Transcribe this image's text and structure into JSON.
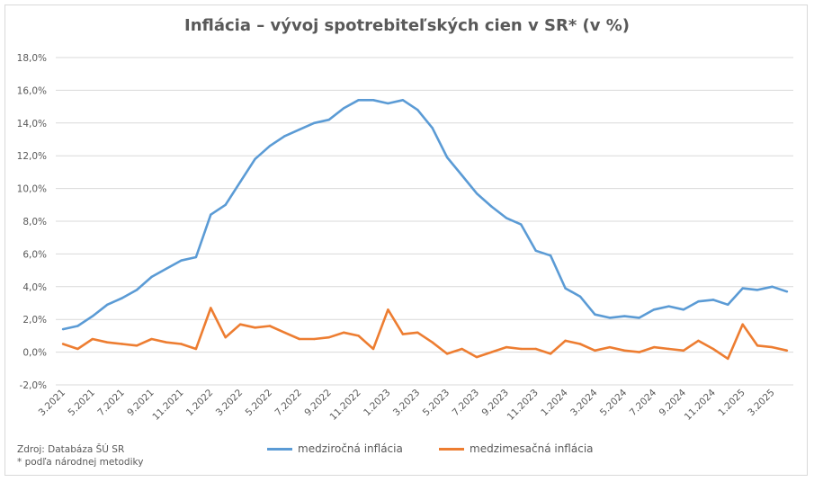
{
  "chart_data": {
    "type": "line",
    "title": "Inflácia –  vývoj spotrebiteľských cien v SR* (v %)",
    "xlabel": "",
    "ylabel": "",
    "ylim": [
      -2,
      18
    ],
    "ytick_labels": [
      "-2,0%",
      "0,0%",
      "2,0%",
      "4,0%",
      "6,0%",
      "8,0%",
      "10,0%",
      "12,0%",
      "14,0%",
      "16,0%",
      "18,0%"
    ],
    "x": [
      "3.2021",
      "4.2021",
      "5.2021",
      "6.2021",
      "7.2021",
      "8.2021",
      "9.2021",
      "10.2021",
      "11.2021",
      "12.2021",
      "1.2022",
      "2.2022",
      "3.2022",
      "4.2022",
      "5.2022",
      "6.2022",
      "7.2022",
      "8.2022",
      "9.2022",
      "10.2022",
      "11.2022",
      "12.2022",
      "1.2023",
      "2.2023",
      "3.2023",
      "4.2023",
      "5.2023",
      "6.2023",
      "7.2023",
      "8.2023",
      "9.2023",
      "10.2023",
      "11.2023",
      "12.2023",
      "1.2024",
      "2.2024",
      "3.2024",
      "4.2024",
      "5.2024",
      "6.2024",
      "7.2024",
      "8.2024",
      "9.2024",
      "10.2024",
      "11.2024",
      "12.2024",
      "1.2025",
      "2.2025",
      "3.2025",
      "4.2025"
    ],
    "x_tick_labels": [
      "3.2021",
      "5.2021",
      "7.2021",
      "9.2021",
      "11.2021",
      "1.2022",
      "3.2022",
      "5.2022",
      "7.2022",
      "9.2022",
      "11.2022",
      "1.2023",
      "3.2023",
      "5.2023",
      "7.2023",
      "9.2023",
      "11.2023",
      "1.2024",
      "3.2024",
      "5.2024",
      "7.2024",
      "9.2024",
      "11.2024",
      "1.2025",
      "3.2025"
    ],
    "grid": true,
    "legend_position": "bottom",
    "series": [
      {
        "name": "medziročná inflácia",
        "color": "#5b9bd5",
        "values": [
          1.4,
          1.6,
          2.2,
          2.9,
          3.3,
          3.8,
          4.6,
          5.1,
          5.6,
          5.8,
          8.4,
          9.0,
          10.4,
          11.8,
          12.6,
          13.2,
          13.6,
          14.0,
          14.2,
          14.9,
          15.4,
          15.4,
          15.2,
          15.4,
          14.8,
          13.7,
          11.9,
          10.8,
          9.7,
          8.9,
          8.2,
          7.8,
          6.2,
          5.9,
          3.9,
          3.4,
          2.3,
          2.1,
          2.2,
          2.1,
          2.6,
          2.8,
          2.6,
          3.1,
          3.2,
          2.9,
          3.9,
          3.8,
          4.0,
          3.7
        ]
      },
      {
        "name": "medzimesačná inflácia",
        "color": "#ed7d31",
        "values": [
          0.5,
          0.2,
          0.8,
          0.6,
          0.5,
          0.4,
          0.8,
          0.6,
          0.5,
          0.2,
          2.7,
          0.9,
          1.7,
          1.5,
          1.6,
          1.2,
          0.8,
          0.8,
          0.9,
          1.2,
          1.0,
          0.2,
          2.6,
          1.1,
          1.2,
          0.6,
          -0.1,
          0.2,
          -0.3,
          0.0,
          0.3,
          0.2,
          0.2,
          -0.1,
          0.7,
          0.5,
          0.1,
          0.3,
          0.1,
          0.0,
          0.3,
          0.2,
          0.1,
          0.7,
          0.2,
          -0.4,
          1.7,
          0.4,
          0.3,
          0.1
        ]
      }
    ]
  },
  "footer": {
    "source": "Zdroj: Databáza ŠÚ SR",
    "note": "* podľa národnej metodiky"
  }
}
